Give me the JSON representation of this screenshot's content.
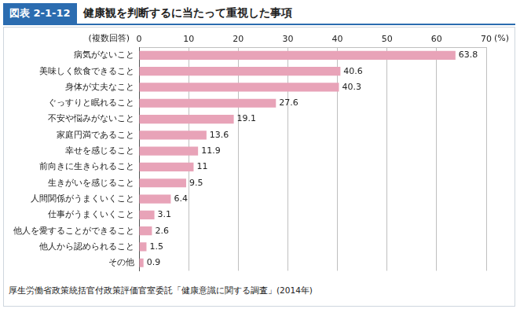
{
  "chart_data": {
    "type": "bar",
    "orientation": "horizontal",
    "figure_label": "図表 2-1-12",
    "title": "健康観を判断するに当たって重視した事項",
    "xlabel": "(%)",
    "ylabel": "(複数回答)",
    "source": "厚生労働省政策統括官付政策評価官室委託「健康意識に関する調査」(2014年)",
    "categories": [
      "病気がないこと",
      "美味しく飲食できること",
      "身体が丈夫なこと",
      "ぐっすりと眠れること",
      "不安や悩みがないこと",
      "家庭円満であること",
      "幸せを感じること",
      "前向きに生きられること",
      "生きがいを感じること",
      "人間関係がうまくいくこと",
      "仕事がうまくいくこと",
      "他人を愛することができること",
      "他人から認められること",
      "その他"
    ],
    "values": [
      63.8,
      40.6,
      40.3,
      27.6,
      19.1,
      13.6,
      11.9,
      11,
      9.5,
      6.4,
      3.1,
      2.6,
      1.5,
      0.9
    ],
    "color": "#e8a3b8",
    "xlim": [
      0,
      70
    ],
    "xticks": [
      0,
      10,
      20,
      30,
      40,
      50,
      60,
      70
    ],
    "grid": true,
    "data_labels": true
  }
}
